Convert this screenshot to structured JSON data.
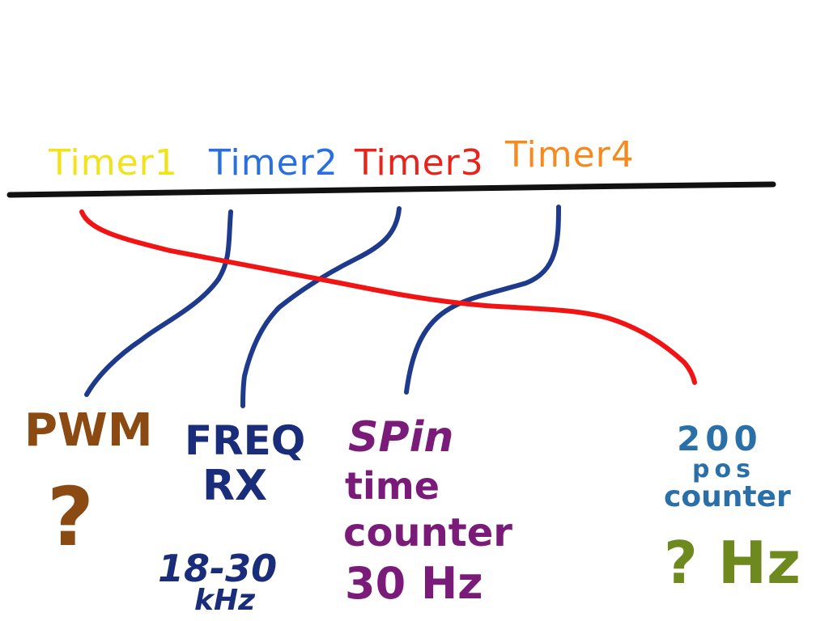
{
  "timers": {
    "t1": {
      "label": "Timer1",
      "color": "#f2e21a"
    },
    "t2": {
      "label": "Timer2",
      "color": "#2a6fe0"
    },
    "t3": {
      "label": "Timer3",
      "color": "#e8231c"
    },
    "t4": {
      "label": "Timer4",
      "color": "#f58a1f"
    }
  },
  "colors": {
    "bus_line": "#111111",
    "wire_blue": "#1e3a8c",
    "wire_red": "#f01414",
    "pwm": "#8a4a12",
    "freq": "#1a2d7a",
    "spin": "#7a1b7a",
    "pos": "#2a6fa8",
    "hz": "#6e8a1e"
  },
  "blocks": {
    "pwm": {
      "title": "PWM",
      "mark": "?"
    },
    "freq": {
      "line1": "FREQ",
      "line2": "RX",
      "range": "18-30",
      "unit": "kHz"
    },
    "spin": {
      "line1": "SPin",
      "line2": "time",
      "line3": "counter",
      "value": "30 Hz"
    },
    "pos": {
      "line1": "200",
      "line2": "pos",
      "line3": "counter",
      "value": "? Hz"
    }
  }
}
